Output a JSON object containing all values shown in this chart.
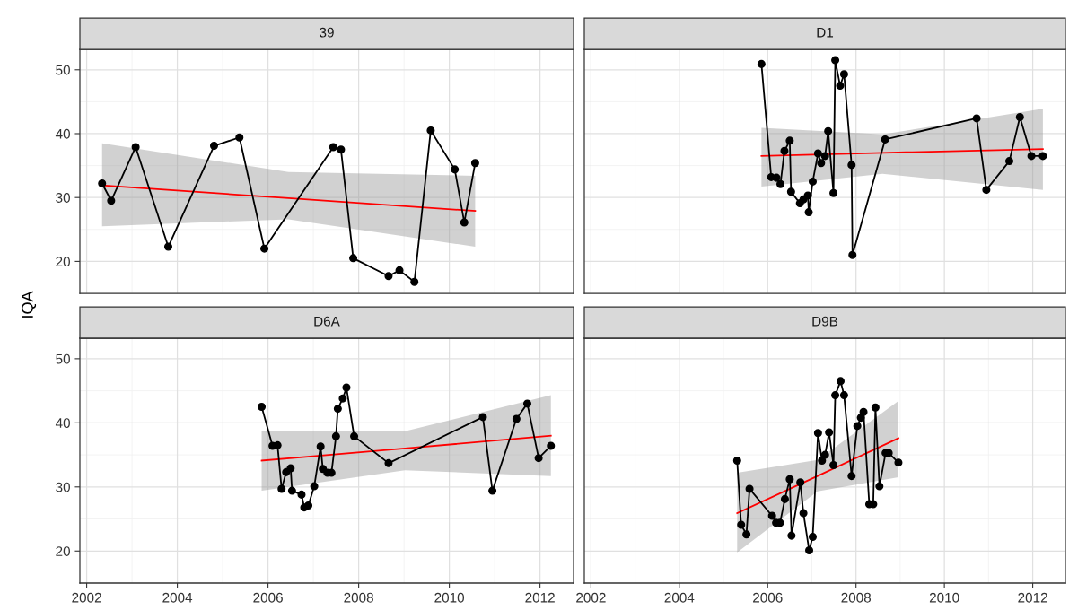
{
  "chart_data": [
    {
      "type": "line",
      "title": "39",
      "ylabel": "IQA",
      "xlim": [
        2001.85,
        2012.74
      ],
      "ylim": [
        15,
        53.2
      ],
      "xticks": [
        2002,
        2004,
        2006,
        2008,
        2010,
        2012
      ],
      "yticks": [
        20,
        30,
        40,
        50
      ],
      "grid": true,
      "tick_labels": "y",
      "series": [
        {
          "color": "#000000",
          "marker": "circle",
          "x": [
            2002.34,
            2002.54,
            2003.08,
            2003.8,
            2004.81,
            2005.37,
            2005.92,
            2007.44,
            2007.61,
            2007.88,
            2008.66,
            2008.9,
            2009.23,
            2009.59,
            2010.12,
            2010.33,
            2010.57
          ],
          "values": [
            32.2,
            29.5,
            37.9,
            22.3,
            38.1,
            39.4,
            22.0,
            37.9,
            37.5,
            20.5,
            17.7,
            18.6,
            16.8,
            40.5,
            34.4,
            26.1,
            35.4
          ]
        },
        {
          "color": "#ff0000",
          "x": [
            2002.34,
            2006.45,
            2010.57
          ],
          "values": [
            31.9,
            29.9,
            27.9
          ],
          "lower": [
            25.5,
            26.6,
            22.3
          ],
          "upper": [
            38.5,
            34.0,
            33.4
          ]
        }
      ]
    },
    {
      "type": "line",
      "title": "D1",
      "xlim": [
        2001.85,
        2012.74
      ],
      "ylim": [
        15,
        53.2
      ],
      "xticks": [
        2002,
        2004,
        2006,
        2008,
        2010,
        2012
      ],
      "yticks": [
        20,
        30,
        40,
        50
      ],
      "grid": true,
      "tick_labels": false,
      "series": [
        {
          "color": "#000000",
          "marker": "circle",
          "x": [
            2005.86,
            2006.08,
            2006.2,
            2006.29,
            2006.38,
            2006.5,
            2006.53,
            2006.73,
            2006.81,
            2006.91,
            2006.93,
            2007.02,
            2007.14,
            2007.21,
            2007.3,
            2007.37,
            2007.49,
            2007.53,
            2007.64,
            2007.73,
            2007.9,
            2007.92,
            2008.66,
            2010.73,
            2010.95,
            2011.47,
            2011.71,
            2011.97,
            2012.23
          ],
          "values": [
            50.9,
            33.2,
            33.1,
            32.1,
            37.3,
            38.9,
            30.9,
            29.1,
            29.7,
            30.3,
            27.7,
            32.5,
            36.9,
            35.4,
            36.5,
            40.4,
            30.7,
            51.5,
            47.5,
            49.3,
            35.1,
            21.0,
            39.1,
            42.4,
            31.2,
            35.7,
            42.6,
            36.5,
            36.5
          ]
        },
        {
          "color": "#ff0000",
          "x": [
            2005.86,
            2008.6,
            2012.23
          ],
          "values": [
            36.5,
            37.0,
            37.6
          ],
          "lower": [
            31.7,
            33.7,
            31.2
          ],
          "upper": [
            40.9,
            39.9,
            43.9
          ]
        }
      ]
    },
    {
      "type": "line",
      "title": "D6A",
      "xlim": [
        2001.85,
        2012.74
      ],
      "ylim": [
        15,
        53.2
      ],
      "xticks": [
        2002,
        2004,
        2006,
        2008,
        2010,
        2012
      ],
      "yticks": [
        20,
        30,
        40,
        50
      ],
      "grid": true,
      "series": [
        {
          "color": "#000000",
          "marker": "circle",
          "x": [
            2005.86,
            2006.1,
            2006.21,
            2006.3,
            2006.4,
            2006.5,
            2006.53,
            2006.74,
            2006.8,
            2006.89,
            2007.02,
            2007.16,
            2007.21,
            2007.31,
            2007.4,
            2007.5,
            2007.54,
            2007.65,
            2007.73,
            2007.9,
            2008.66,
            2010.74,
            2010.95,
            2011.48,
            2011.72,
            2011.97,
            2012.24
          ],
          "values": [
            42.5,
            36.4,
            36.5,
            29.7,
            32.3,
            32.9,
            29.4,
            28.8,
            26.8,
            27.1,
            30.1,
            36.3,
            32.8,
            32.2,
            32.2,
            37.9,
            42.2,
            43.8,
            45.5,
            37.9,
            33.7,
            40.9,
            29.4,
            40.6,
            43.0,
            34.5,
            36.4
          ]
        },
        {
          "color": "#ff0000",
          "x": [
            2005.86,
            2009.02,
            2012.24
          ],
          "values": [
            34.1,
            36.0,
            38.0
          ],
          "lower": [
            29.4,
            32.6,
            31.7
          ],
          "upper": [
            38.8,
            38.7,
            44.3
          ]
        }
      ]
    },
    {
      "type": "line",
      "title": "D9B",
      "xlim": [
        2001.85,
        2012.74
      ],
      "ylim": [
        15,
        53.2
      ],
      "xticks": [
        2002,
        2004,
        2006,
        2008,
        2010,
        2012
      ],
      "yticks": [
        20,
        30,
        40,
        50
      ],
      "grid": true,
      "tick_labels": "x",
      "series": [
        {
          "color": "#000000",
          "marker": "circle",
          "x": [
            2005.31,
            2005.4,
            2005.52,
            2005.59,
            2006.1,
            2006.19,
            2006.28,
            2006.39,
            2006.5,
            2006.54,
            2006.74,
            2006.81,
            2006.94,
            2007.02,
            2007.14,
            2007.23,
            2007.3,
            2007.39,
            2007.49,
            2007.53,
            2007.65,
            2007.73,
            2007.9,
            2008.03,
            2008.11,
            2008.17,
            2008.3,
            2008.39,
            2008.44,
            2008.53,
            2008.67,
            2008.74,
            2008.96
          ],
          "values": [
            34.1,
            24.1,
            22.6,
            29.7,
            25.5,
            24.4,
            24.4,
            28.1,
            31.2,
            22.4,
            30.7,
            25.9,
            20.1,
            22.2,
            38.4,
            34.1,
            35.0,
            38.5,
            33.4,
            44.3,
            46.5,
            44.3,
            31.7,
            39.5,
            40.8,
            41.7,
            27.3,
            27.3,
            42.4,
            30.1,
            35.3,
            35.3,
            33.8
          ]
        },
        {
          "color": "#ff0000",
          "x": [
            2005.31,
            2007.13,
            2008.96
          ],
          "values": [
            25.9,
            31.7,
            37.6
          ],
          "lower": [
            19.8,
            29.3,
            31.5
          ],
          "upper": [
            32.2,
            34.2,
            43.4
          ]
        }
      ]
    }
  ]
}
